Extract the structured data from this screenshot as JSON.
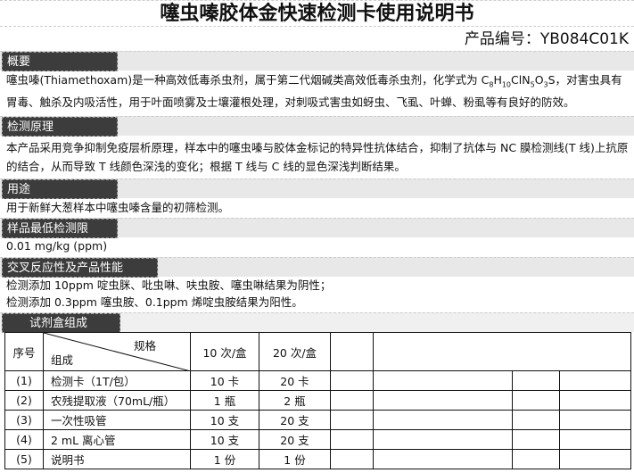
{
  "title": "噻虫嗪胶体金快速检测卡使用说明书",
  "product_code": "产品编号：YB084C01K",
  "sections": {
    "overview": {
      "label": "概要",
      "text_a": "噻虫嗪(Thiamethoxam)是一种高效低毒杀虫剂，属于第二代烟碱类高效低毒杀虫剂，化学式为 C",
      "f1": "8",
      "f2": "H",
      "f3": "10",
      "f4": "ClN",
      "f5": "5",
      "f6": "O",
      "f7": "3",
      "f8": "S，",
      "text_b": "对害虫具有胃毒、触杀及内吸活性，用于叶面喷雾及士壤灌根处理，对刺吸式害虫如蚜虫、飞虱、叶蝉、粉虱等有良好的防效。"
    },
    "principle": {
      "label": "检测原理",
      "text": "本产品采用竞争抑制免疫层析原理，样本中的噻虫嗪与胶体金标记的特异性抗体结合，抑制了抗体与 NC 膜检测线(T 线)上抗原的结合，从而导致 T 线颜色深浅的变化；根据 T 线与 C 线的显色深浅判断结果。"
    },
    "usage": {
      "label": "用途",
      "text": "用于新鲜大葱样本中噻虫嗪含量的初筛检测。"
    },
    "lod": {
      "label": "样品最低检测限",
      "text": "0.01 mg/kg (ppm)"
    },
    "cross": {
      "label": "交叉反应性及产品性能",
      "line1": "检测添加 10ppm 啶虫脒、吡虫啉、呋虫胺、噻虫啉结果为阴性；",
      "line2": "检测添加 0.3ppm 噻虫胺、0.1ppm 烯啶虫胺结果为阳性。"
    },
    "kit": {
      "label": "试剂盒组成"
    }
  },
  "table": {
    "h_no": "序号",
    "h_spec": "规格",
    "h_comp": "组成",
    "h_10": "10 次/盒",
    "h_20": "20 次/盒",
    "rows": [
      {
        "no": "(1)",
        "name": "检测卡（1T/包）",
        "a": "10 卡",
        "b": "20 卡"
      },
      {
        "no": "(2)",
        "name": "农残提取液（70mL/瓶）",
        "a": "1 瓶",
        "b": "2 瓶"
      },
      {
        "no": "(3)",
        "name": "一次性吸管",
        "a": "10 支",
        "b": "20 支"
      },
      {
        "no": "(4)",
        "name": "2 mL 离心管",
        "a": "10 支",
        "b": "20 支"
      },
      {
        "no": "(5)",
        "name": "说明书",
        "a": "1 份",
        "b": "1 份"
      }
    ]
  }
}
